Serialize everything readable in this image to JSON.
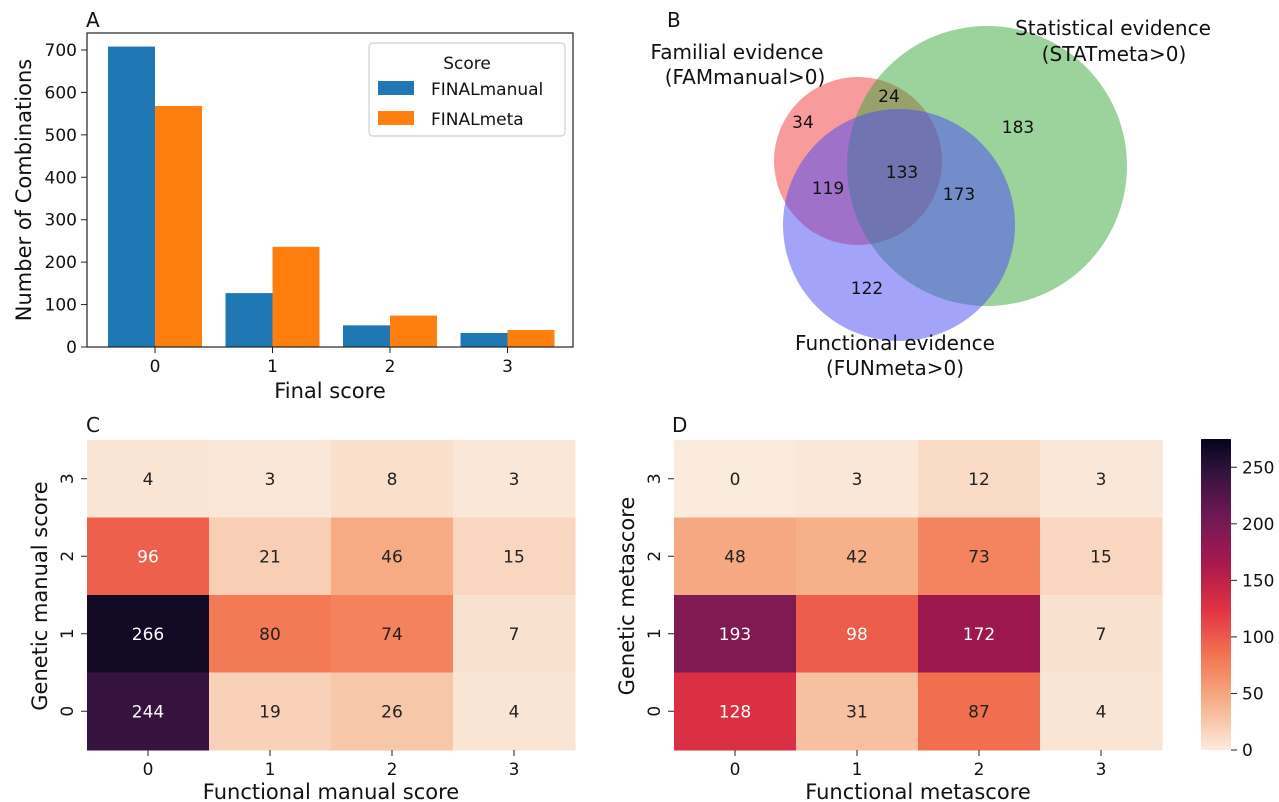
{
  "colors": {
    "manual": "#1f77b4",
    "meta": "#ff7f0e",
    "venn_familial": "#f0494d",
    "venn_statistical": "#3aa63a",
    "venn_functional": "#4848f5"
  },
  "panels": {
    "a": "A",
    "b": "B",
    "c": "C",
    "d": "D"
  },
  "colorbar": {
    "ticks": [
      "0",
      "50",
      "100",
      "150",
      "200",
      "250"
    ],
    "tick_values": [
      0,
      50,
      100,
      150,
      200,
      250
    ],
    "range": [
      0,
      275
    ]
  },
  "chart_data": [
    {
      "type": "bar",
      "categories": [
        "0",
        "1",
        "2",
        "3"
      ],
      "xlabel": "Final score",
      "ylabel": "Number of Combinations",
      "ylim": [
        0,
        740
      ],
      "yticks": [
        0,
        100,
        200,
        300,
        400,
        500,
        600,
        700
      ],
      "ytick_labels": [
        "0",
        "100",
        "200",
        "300",
        "400",
        "500",
        "600",
        "700"
      ],
      "legend_title": "Score",
      "legend_position": "top-right",
      "series": [
        {
          "name": "FINALmanual",
          "values": [
            708,
            127,
            51,
            33
          ]
        },
        {
          "name": "FINALmeta",
          "values": [
            568,
            236,
            74,
            40
          ]
        }
      ]
    },
    {
      "type": "venn",
      "sets": [
        {
          "label": "Familial evidence",
          "sublabel": "(FAMmanual>0)"
        },
        {
          "label": "Statistical evidence",
          "sublabel": "(STATmeta>0)"
        },
        {
          "label": "Functional evidence",
          "sublabel": "(FUNmeta>0)"
        }
      ],
      "regions": {
        "familial_only": "34",
        "familial_statistical": "24",
        "statistical_only": "183",
        "familial_functional": "119",
        "all_three": "133",
        "statistical_functional": "173",
        "functional_only": "122"
      }
    },
    {
      "type": "heatmap",
      "xlabel": "Functional manual score",
      "ylabel": "Genetic manual score",
      "x_categories": [
        "0",
        "1",
        "2",
        "3"
      ],
      "y_categories_top_to_bottom": [
        "3",
        "2",
        "1",
        "0"
      ],
      "values_top_to_bottom": [
        [
          4,
          3,
          8,
          3
        ],
        [
          96,
          21,
          46,
          15
        ],
        [
          266,
          80,
          74,
          7
        ],
        [
          244,
          19,
          26,
          4
        ]
      ]
    },
    {
      "type": "heatmap",
      "xlabel": "Functional metascore",
      "ylabel": "Genetic metascore",
      "x_categories": [
        "0",
        "1",
        "2",
        "3"
      ],
      "y_categories_top_to_bottom": [
        "3",
        "2",
        "1",
        "0"
      ],
      "values_top_to_bottom": [
        [
          0,
          3,
          12,
          3
        ],
        [
          48,
          42,
          73,
          15
        ],
        [
          193,
          98,
          172,
          7
        ],
        [
          128,
          31,
          87,
          4
        ]
      ]
    }
  ]
}
